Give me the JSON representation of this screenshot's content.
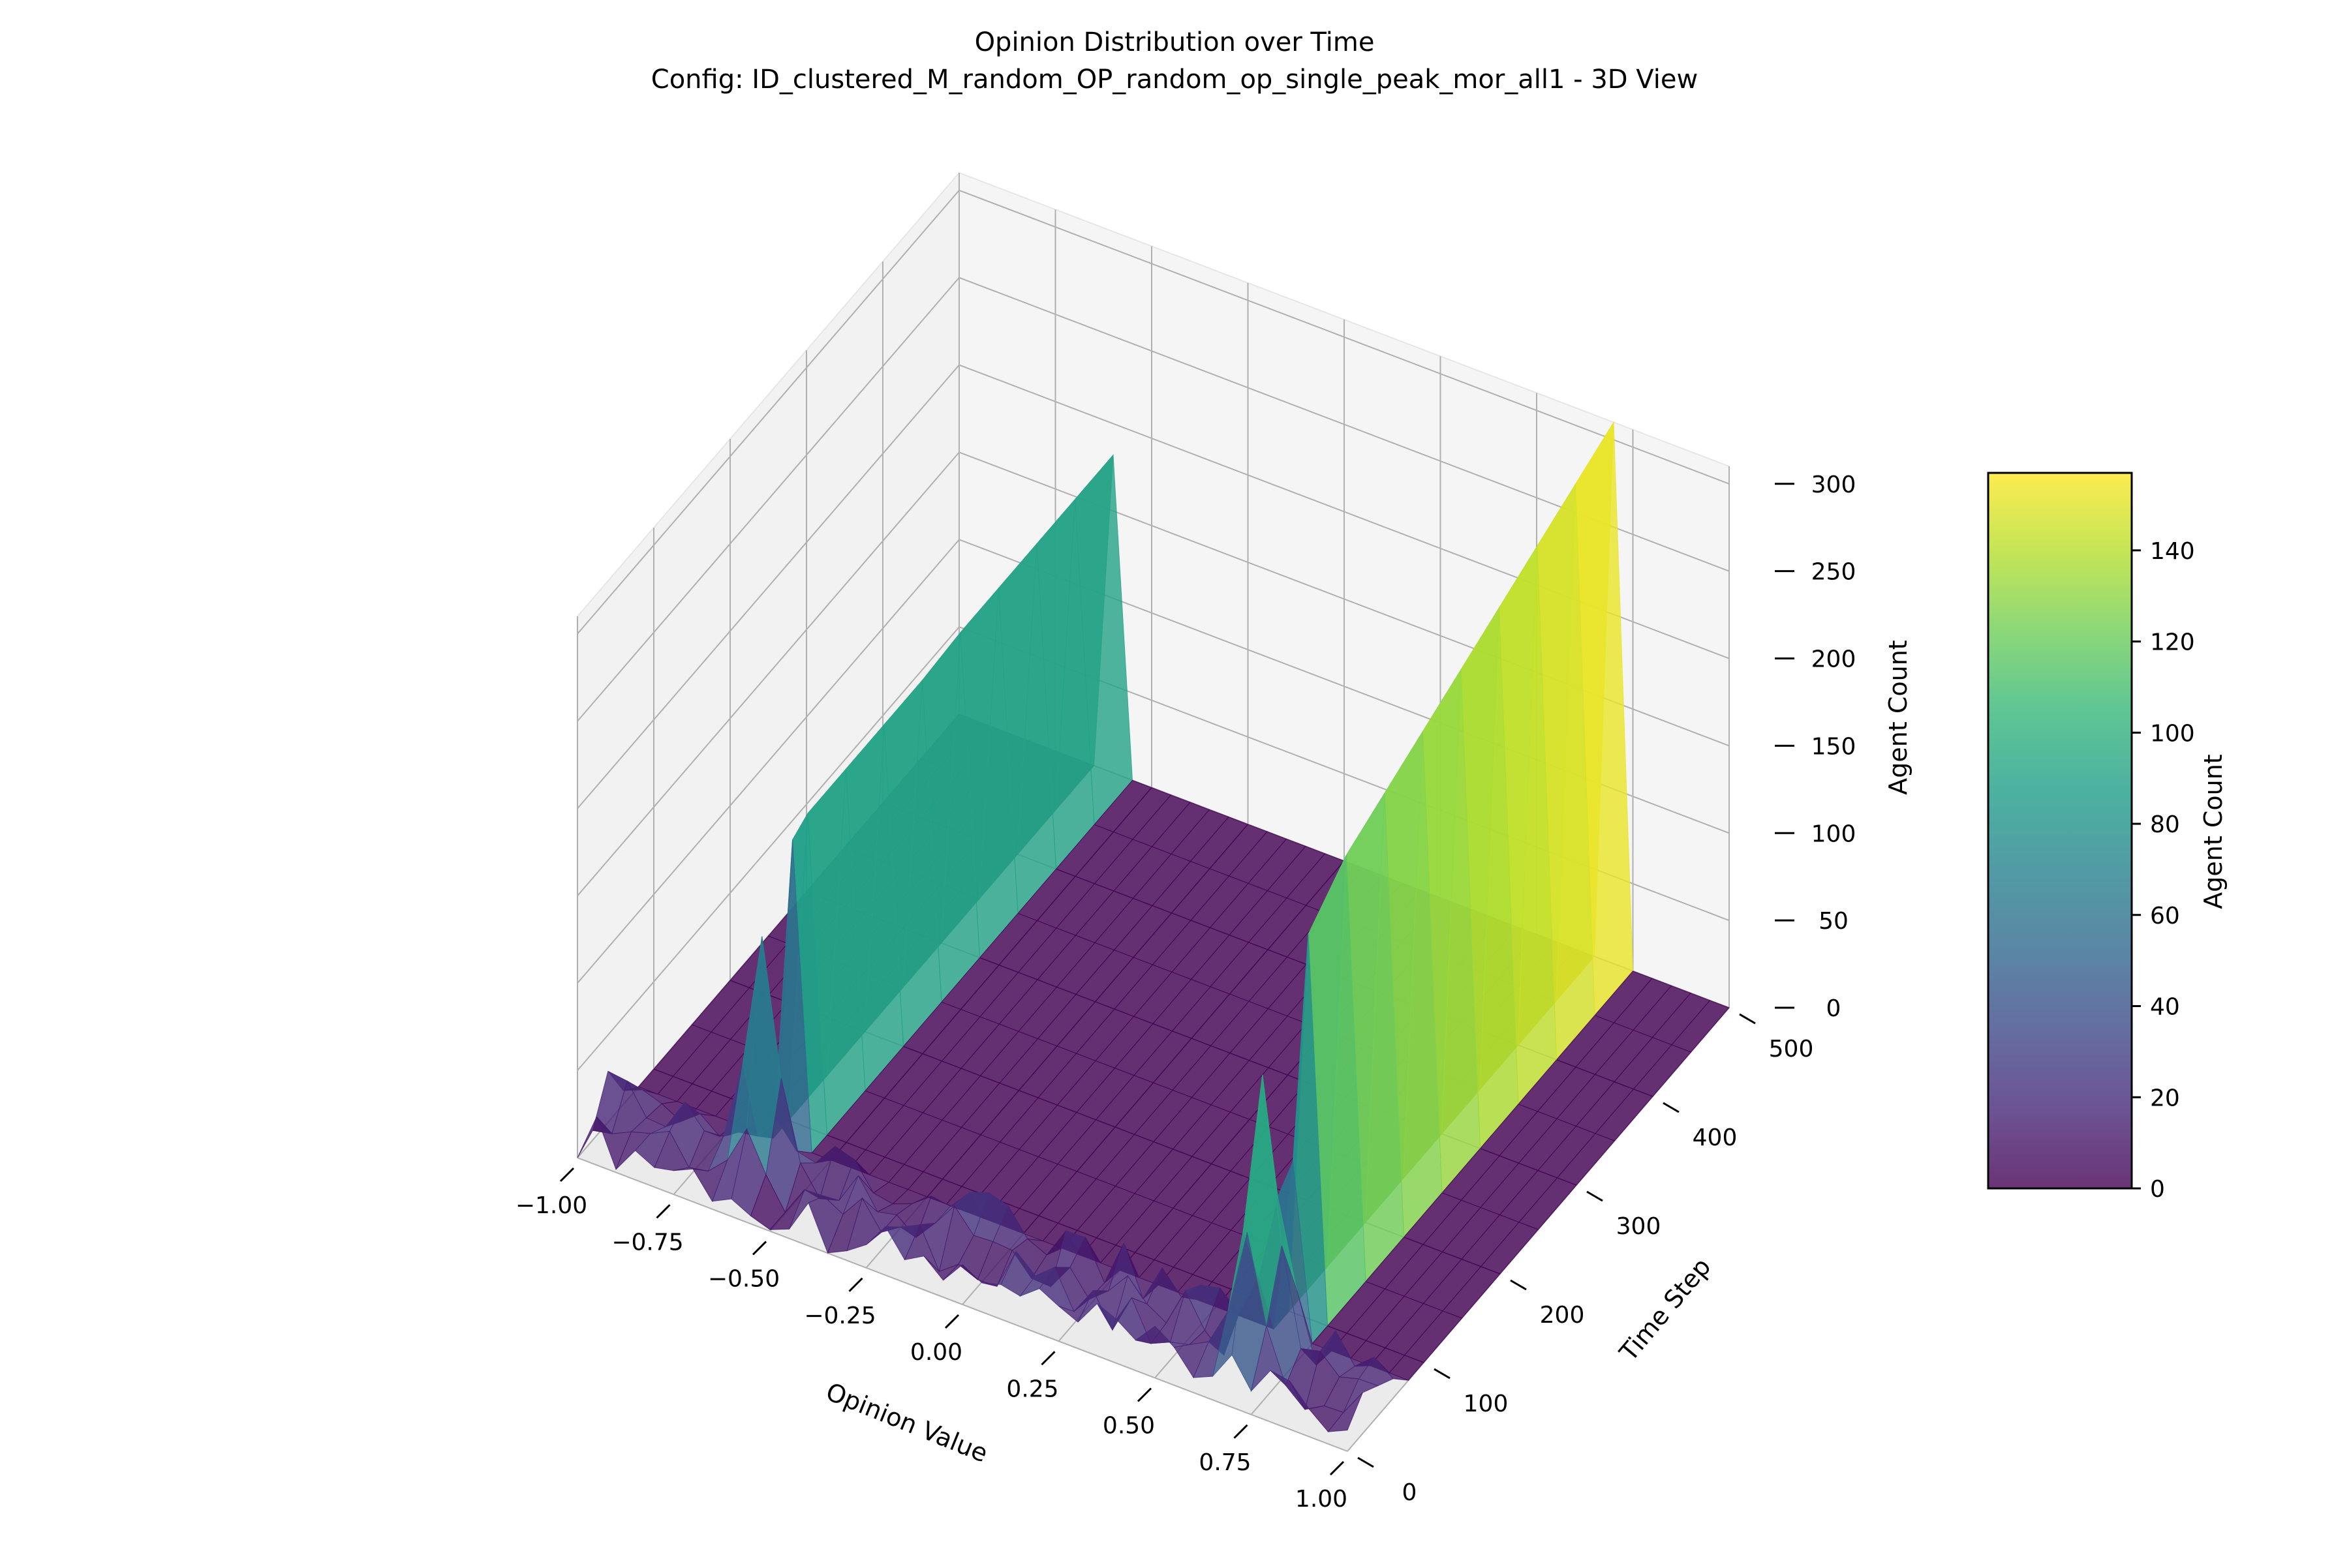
{
  "colors": {
    "background": "#ffffff",
    "pane": "#f2f2f2",
    "grid": "#b0b0b0",
    "axis_line": "#000000",
    "text": "#000000",
    "colormap": [
      "#440154",
      "#482878",
      "#3e4989",
      "#31688e",
      "#26828e",
      "#1f9e89",
      "#35b779",
      "#6ece58",
      "#b5de2b",
      "#fde725"
    ],
    "surface_alpha": 0.8
  },
  "chart_data": {
    "type": "surface3d",
    "title": "Opinion Distribution over Time",
    "subtitle": "Config: ID_clustered_M_random_OP_random_op_single_peak_mor_all1 - 3D View",
    "xlabel": "Opinion Value",
    "ylabel": "Time Step",
    "zlabel": "Agent Count",
    "xlim": [
      -1.0,
      1.0
    ],
    "ylim": [
      0,
      500
    ],
    "zlim": [
      0,
      310
    ],
    "x_ticks": [
      "−1.00",
      "−0.75",
      "−0.50",
      "−0.25",
      "0.00",
      "0.25",
      "0.50",
      "0.75",
      "1.00"
    ],
    "x_tick_values": [
      -1.0,
      -0.75,
      -0.5,
      -0.25,
      0.0,
      0.25,
      0.5,
      0.75,
      1.0
    ],
    "y_ticks": [
      "0",
      "100",
      "200",
      "300",
      "400",
      "500"
    ],
    "y_tick_values": [
      0,
      100,
      200,
      300,
      400,
      500
    ],
    "z_ticks": [
      "0",
      "50",
      "100",
      "150",
      "200",
      "250",
      "300"
    ],
    "z_tick_values": [
      0,
      50,
      100,
      150,
      200,
      250,
      300
    ],
    "colorbar": {
      "label": "Agent Count",
      "range": [
        0,
        157
      ],
      "ticks": [
        "0",
        "20",
        "40",
        "60",
        "80",
        "100",
        "120",
        "140"
      ],
      "tick_values": [
        0,
        20,
        40,
        60,
        80,
        100,
        120,
        140
      ]
    },
    "opinion_bins": [
      -1.0,
      -0.95,
      -0.9,
      -0.85,
      -0.8,
      -0.75,
      -0.7,
      -0.65,
      -0.6,
      -0.55,
      -0.5,
      -0.45,
      -0.4,
      -0.35,
      -0.3,
      -0.25,
      -0.2,
      -0.15,
      -0.1,
      -0.05,
      0.0,
      0.05,
      0.1,
      0.15,
      0.2,
      0.25,
      0.3,
      0.35,
      0.4,
      0.45,
      0.5,
      0.55,
      0.6,
      0.65,
      0.7,
      0.75,
      0.8,
      0.85,
      0.9,
      0.95,
      1.0
    ],
    "time_steps": [
      0,
      20,
      40,
      60,
      80,
      100,
      150,
      200,
      250,
      300,
      350,
      400,
      450,
      500
    ],
    "peaks": [
      {
        "opinion": -0.6,
        "time_steps": [
          0,
          20,
          40,
          60,
          80,
          100,
          150,
          200,
          250,
          300,
          350,
          400,
          450,
          500
        ],
        "agent_count": [
          10,
          40,
          140,
          25,
          175,
          180,
          180,
          180,
          180,
          182,
          182,
          182,
          182,
          182
        ]
      },
      {
        "opinion": 0.7,
        "time_steps": [
          0,
          20,
          40,
          60,
          80,
          100,
          150,
          200,
          250,
          300,
          350,
          400,
          450,
          500
        ],
        "agent_count": [
          30,
          90,
          170,
          90,
          100,
          220,
          240,
          250,
          260,
          270,
          280,
          290,
          300,
          310
        ]
      }
    ],
    "baseline_noise_range": [
      0,
      30
    ]
  }
}
